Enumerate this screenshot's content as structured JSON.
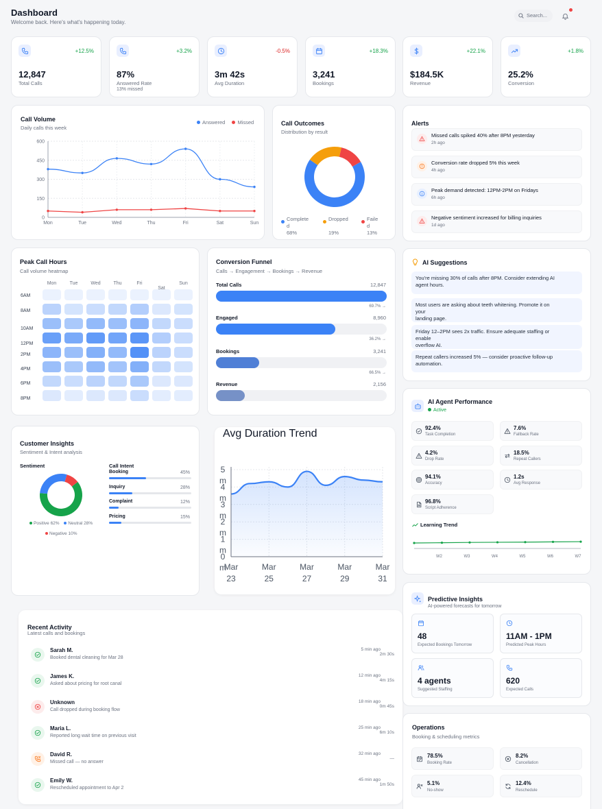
{
  "header": {
    "title": "Dashboard",
    "subtitle": "Welcome back. Here's what's happening today.",
    "search_placeholder": "Search...",
    "notification_color": "#ef4444"
  },
  "kpis": [
    {
      "icon": "phone-icon",
      "delta": "+12.5%",
      "value": "12,847",
      "label": "Total Calls",
      "note": ""
    },
    {
      "icon": "phone-icon",
      "delta": "+3.2%",
      "value": "87%",
      "label": "Answered Rate",
      "note": "13% missed"
    },
    {
      "icon": "clock-icon",
      "delta": "-0.5%",
      "value": "3m 42s",
      "label": "Avg Duration",
      "note": ""
    },
    {
      "icon": "calendar-icon",
      "delta": "+18.3%",
      "value": "3,241",
      "label": "Bookings",
      "note": ""
    },
    {
      "icon": "dollar-icon",
      "delta": "+22.1%",
      "value": "$184.5K",
      "label": "Revenue",
      "note": ""
    },
    {
      "icon": "trending-up-icon",
      "delta": "+1.8%",
      "value": "25.2%",
      "label": "Conversion",
      "note": ""
    }
  ],
  "call_volume": {
    "title": "Call Volume",
    "subtitle": "Daily calls this week",
    "legend": [
      "Answered",
      "Missed"
    ],
    "colors": [
      "#3b82f6",
      "#ef4444"
    ],
    "chart_data": {
      "type": "line",
      "title": "Call Volume",
      "categories": [
        "Mon",
        "Tue",
        "Wed",
        "Thu",
        "Fri",
        "Sat",
        "Sun"
      ],
      "series": [
        {
          "name": "Answered",
          "values": [
            380,
            350,
            465,
            420,
            540,
            300,
            240
          ]
        },
        {
          "name": "Missed",
          "values": [
            50,
            40,
            60,
            60,
            70,
            50,
            50
          ]
        }
      ],
      "ylim": [
        0,
        600
      ],
      "yticks": [
        "0",
        "150",
        "300",
        "450",
        "600"
      ],
      "grid": true,
      "legend": "top-right"
    }
  },
  "call_outcomes": {
    "title": "Call Outcomes",
    "subtitle": "Distribution by result",
    "chart_data": {
      "type": "pie",
      "slices": [
        {
          "name": "Completed",
          "value": 68,
          "color": "#3b82f6"
        },
        {
          "name": "Dropped",
          "value": 19,
          "color": "#f59e0b"
        },
        {
          "name": "Failed",
          "value": 13,
          "color": "#ef4444"
        }
      ]
    },
    "legend": [
      {
        "line1": "Complete",
        "line2": "d",
        "pct": "68%"
      },
      {
        "line1": "Dropped",
        "line2": "",
        "pct": "19%"
      },
      {
        "line1": "Faile",
        "line2": "d",
        "pct": "13%"
      }
    ]
  },
  "alerts": {
    "title": "Alerts",
    "items": [
      {
        "icon": "warning-icon",
        "text": "Missed calls spiked 40% after 8PM yesterday",
        "time": "2h ago"
      },
      {
        "icon": "alert-circle-icon",
        "text": "Conversion rate dropped 5% this week",
        "time": "4h ago"
      },
      {
        "icon": "info-icon",
        "text": "Peak demand detected: 12PM-2PM on Fridays",
        "time": "6h ago"
      },
      {
        "icon": "warning-icon",
        "text": "Negative sentiment increased for billing inquiries",
        "time": "1d ago"
      }
    ]
  },
  "peak_hours": {
    "title": "Peak Call Hours",
    "subtitle": "Call volume heatmap",
    "chart_data": {
      "type": "heatmap",
      "x": [
        "Mon",
        "Tue",
        "Wed",
        "Thu",
        "Fri",
        "Sat",
        "Sun"
      ],
      "y": [
        "6AM",
        "8AM",
        "10AM",
        "12PM",
        "2PM",
        "4PM",
        "6PM",
        "8PM"
      ],
      "values": [
        [
          0.05,
          0.05,
          0.05,
          0.05,
          0.05,
          0.05,
          0.05
        ],
        [
          0.35,
          0.2,
          0.25,
          0.3,
          0.4,
          0.15,
          0.2
        ],
        [
          0.55,
          0.45,
          0.6,
          0.55,
          0.65,
          0.3,
          0.25
        ],
        [
          0.85,
          0.75,
          0.9,
          0.8,
          0.95,
          0.4,
          0.25
        ],
        [
          0.65,
          0.55,
          0.7,
          0.6,
          1.0,
          0.35,
          0.25
        ],
        [
          0.55,
          0.45,
          0.6,
          0.5,
          0.7,
          0.3,
          0.2
        ],
        [
          0.3,
          0.25,
          0.35,
          0.3,
          0.45,
          0.15,
          0.15
        ],
        [
          0.15,
          0.1,
          0.15,
          0.15,
          0.25,
          0.1,
          0.1
        ]
      ]
    }
  },
  "funnel": {
    "title": "Conversion Funnel",
    "subtitle": "Calls → Engagement → Bookings → Revenue",
    "chart_data": {
      "type": "bar",
      "categories": [
        "Total Calls",
        "Engaged",
        "Bookings",
        "Revenue"
      ],
      "values": [
        12847,
        8960,
        3241,
        2156
      ],
      "value_labels": [
        "12,847",
        "8,960",
        "3,241",
        "2,156"
      ],
      "colors": [
        "#3b82f6",
        "#3b82f6",
        "#4f7fd6",
        "#7691c7"
      ]
    },
    "rates": [
      "69.7% →",
      "36.2% →",
      "66.5% →"
    ]
  },
  "ai_suggestions": {
    "title": "AI Suggestions",
    "items": [
      {
        "lines": [
          "You're missing 30% of calls after 8PM. Consider extending AI",
          "agent hours."
        ]
      },
      {
        "lines": [
          "Most users are asking about teeth whitening. Promote it on",
          "your",
          "landing page."
        ]
      },
      {
        "lines": [
          "Friday 12–2PM sees 2x traffic. Ensure adequate staffing or",
          "enable",
          "overflow AI."
        ]
      },
      {
        "lines": [
          "Repeat callers increased 5% — consider proactive follow-up",
          "automation."
        ]
      }
    ]
  },
  "agent": {
    "title": "AI Agent Performance",
    "status": "Active",
    "metrics": [
      {
        "icon": "check-circle-icon",
        "value": "92.4%",
        "label": "Task Completion"
      },
      {
        "icon": "warning-icon",
        "value": "7.6%",
        "label": "Fallback Rate"
      },
      {
        "icon": "warning-icon",
        "value": "4.2%",
        "label": "Drop Rate"
      },
      {
        "icon": "repeat-icon",
        "value": "18.5%",
        "label": "Repeat Callers"
      },
      {
        "icon": "target-icon",
        "value": "94.1%",
        "label": "Accuracy"
      },
      {
        "icon": "clock-icon",
        "value": "1.2s",
        "label": "Avg Response"
      },
      {
        "icon": "document-icon",
        "value": "96.8%",
        "label": "Script Adherence"
      }
    ],
    "learning": {
      "title": "Learning Trend",
      "chart_data": {
        "type": "line",
        "categories": [
          "W1",
          "W2",
          "W3",
          "W4",
          "W5",
          "W6",
          "W7"
        ],
        "tick_labels": [
          "",
          "W2",
          "W3",
          "W4",
          "W5",
          "W6",
          "W7"
        ],
        "values": [
          86,
          86.5,
          87,
          87.3,
          87.6,
          88,
          88.4
        ],
        "ylim": [
          0,
          100
        ]
      }
    }
  },
  "insights": {
    "title": "Customer Insights",
    "subtitle": "Sentiment & Intent analysis",
    "sentiment_title": "Sentiment",
    "sentiment_chart": {
      "type": "pie",
      "slices": [
        {
          "name": "Positive",
          "value": 62,
          "color": "#16a34a"
        },
        {
          "name": "Neutral",
          "value": 28,
          "color": "#3b82f6"
        },
        {
          "name": "Negative",
          "value": 10,
          "color": "#ef4444"
        }
      ]
    },
    "sentiment_legend": [
      "Positive 62%",
      "Neutral 28%",
      "Negative 10%"
    ],
    "intent_title": "Call Intent",
    "intents": [
      {
        "label": "Booking",
        "pct": "45%",
        "value": 45
      },
      {
        "label": "Inquiry",
        "pct": "28%",
        "value": 28
      },
      {
        "label": "Complaint",
        "pct": "12%",
        "value": 12
      },
      {
        "label": "Pricing",
        "pct": "15%",
        "value": 15
      }
    ]
  },
  "duration_trend": {
    "title": "Avg Duration Trend",
    "chart_data": {
      "type": "area",
      "categories": [
        "Mar 23",
        "Mar 24",
        "Mar 25",
        "Mar 26",
        "Mar 27",
        "Mar 28",
        "Mar 29",
        "Mar 30",
        "Mar 31"
      ],
      "x_tick_labels": [
        [
          "Mar",
          "23"
        ],
        [
          "Mar",
          "25"
        ],
        [
          "Mar",
          "27"
        ],
        [
          "Mar",
          "29"
        ],
        [
          "Mar",
          "31"
        ]
      ],
      "values": [
        3.6,
        4.2,
        4.3,
        4.0,
        4.9,
        4.1,
        4.6,
        4.4,
        4.3
      ],
      "ylim": [
        0,
        5
      ],
      "y_tick_labels": [
        [
          "5",
          "m"
        ],
        [
          "4",
          "m"
        ],
        [
          "3",
          "m"
        ],
        [
          "2",
          "m"
        ],
        [
          "1",
          "m"
        ],
        [
          "0",
          "m"
        ]
      ],
      "color": "#3b82f6"
    }
  },
  "activity": {
    "title": "Recent Activity",
    "subtitle": "Latest calls and bookings",
    "items": [
      {
        "icon": "check-circle-icon",
        "kind": "ok",
        "name": "Sarah M.",
        "desc": "Booked dental cleaning for Mar 28",
        "time": "5 min ago",
        "dur": "2m 30s"
      },
      {
        "icon": "check-circle-icon",
        "kind": "ok",
        "name": "James K.",
        "desc": "Asked about pricing for root canal",
        "time": "12 min ago",
        "dur": "4m 15s"
      },
      {
        "icon": "x-circle-icon",
        "kind": "bad",
        "name": "Unknown",
        "desc": "Call dropped during booking flow",
        "time": "18 min ago",
        "dur": "0m 45s"
      },
      {
        "icon": "check-circle-icon",
        "kind": "ok",
        "name": "Maria L.",
        "desc": "Reported long wait time on previous visit",
        "time": "25 min ago",
        "dur": "6m 10s"
      },
      {
        "icon": "phone-missed-icon",
        "kind": "miss",
        "name": "David R.",
        "desc": "Missed call — no answer",
        "time": "32 min ago",
        "dur": "—"
      },
      {
        "icon": "check-circle-icon",
        "kind": "ok",
        "name": "Emily W.",
        "desc": "Rescheduled appointment to Apr 2",
        "time": "45 min ago",
        "dur": "1m 50s"
      }
    ]
  },
  "predictive": {
    "title": "Predictive Insights",
    "subtitle": "AI-powered forecasts for tomorrow",
    "boxes": [
      {
        "icon": "calendar-icon",
        "value": "48",
        "label": "Expected Bookings Tomorrow"
      },
      {
        "icon": "clock-icon",
        "value": "11AM - 1PM",
        "label": "Predicted Peak Hours"
      },
      {
        "icon": "users-icon",
        "value": "4 agents",
        "label": "Suggested Staffing"
      },
      {
        "icon": "phone-icon",
        "value": "620",
        "label": "Expected Calls"
      }
    ]
  },
  "operations": {
    "title": "Operations",
    "subtitle": "Booking & scheduling metrics",
    "metrics": [
      {
        "icon": "calendar-check-icon",
        "value": "78.5%",
        "label": "Booking Rate"
      },
      {
        "icon": "x-circle-icon",
        "value": "8.2%",
        "label": "Cancellation"
      },
      {
        "icon": "user-x-icon",
        "value": "5.1%",
        "label": "No-show"
      },
      {
        "icon": "refresh-icon",
        "value": "12.4%",
        "label": "Reschedule"
      }
    ]
  }
}
